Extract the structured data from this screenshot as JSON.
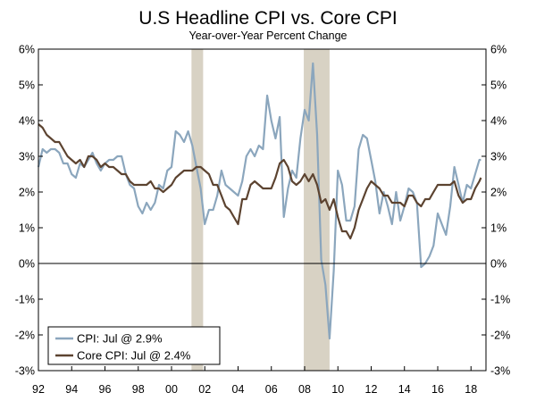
{
  "chart_data": {
    "type": "line",
    "title": "U.S Headline CPI vs. Core CPI",
    "subtitle": "Year-over-Year Percent Change",
    "xlim": [
      1992.0,
      2018.9
    ],
    "ylim": [
      -3,
      6
    ],
    "x_tick_labels": [
      {
        "x": 1992,
        "label": "92"
      },
      {
        "x": 1994,
        "label": "94"
      },
      {
        "x": 1996,
        "label": "96"
      },
      {
        "x": 1998,
        "label": "98"
      },
      {
        "x": 2000,
        "label": "00"
      },
      {
        "x": 2002,
        "label": "02"
      },
      {
        "x": 2004,
        "label": "04"
      },
      {
        "x": 2006,
        "label": "06"
      },
      {
        "x": 2008,
        "label": "08"
      },
      {
        "x": 2010,
        "label": "10"
      },
      {
        "x": 2012,
        "label": "12"
      },
      {
        "x": 2014,
        "label": "14"
      },
      {
        "x": 2016,
        "label": "16"
      },
      {
        "x": 2018,
        "label": "18"
      }
    ],
    "y_ticks": [
      {
        "value": 6,
        "label": "6%"
      },
      {
        "value": 5,
        "label": "5%"
      },
      {
        "value": 4,
        "label": "4%"
      },
      {
        "value": 3,
        "label": "3%"
      },
      {
        "value": 2,
        "label": "2%"
      },
      {
        "value": 1,
        "label": "1%"
      },
      {
        "value": 0,
        "label": "0%"
      },
      {
        "value": -1,
        "label": "-1%"
      },
      {
        "value": -2,
        "label": "-2%"
      },
      {
        "value": -3,
        "label": "-3%"
      }
    ],
    "recessions": [
      {
        "start": 2001.2,
        "end": 2001.9
      },
      {
        "start": 2007.95,
        "end": 2009.5
      }
    ],
    "zero_line": true,
    "grid": false,
    "legend_position": "bottom-left",
    "series": [
      {
        "name": "CPI: Jul @ 2.9%",
        "color": "#8ba6bd",
        "points": [
          [
            1992.0,
            2.7
          ],
          [
            1992.25,
            3.2
          ],
          [
            1992.5,
            3.1
          ],
          [
            1992.75,
            3.2
          ],
          [
            1993.0,
            3.2
          ],
          [
            1993.25,
            3.1
          ],
          [
            1993.5,
            2.8
          ],
          [
            1993.75,
            2.8
          ],
          [
            1994.0,
            2.5
          ],
          [
            1994.25,
            2.4
          ],
          [
            1994.5,
            2.8
          ],
          [
            1994.75,
            2.7
          ],
          [
            1995.0,
            2.9
          ],
          [
            1995.25,
            3.1
          ],
          [
            1995.5,
            2.8
          ],
          [
            1995.75,
            2.6
          ],
          [
            1996.0,
            2.8
          ],
          [
            1996.25,
            2.9
          ],
          [
            1996.5,
            2.9
          ],
          [
            1996.75,
            3.0
          ],
          [
            1997.0,
            3.0
          ],
          [
            1997.25,
            2.5
          ],
          [
            1997.5,
            2.2
          ],
          [
            1997.75,
            2.1
          ],
          [
            1998.0,
            1.6
          ],
          [
            1998.25,
            1.4
          ],
          [
            1998.5,
            1.7
          ],
          [
            1998.75,
            1.5
          ],
          [
            1999.0,
            1.7
          ],
          [
            1999.25,
            2.2
          ],
          [
            1999.5,
            2.1
          ],
          [
            1999.75,
            2.6
          ],
          [
            2000.0,
            2.7
          ],
          [
            2000.25,
            3.7
          ],
          [
            2000.5,
            3.6
          ],
          [
            2000.75,
            3.4
          ],
          [
            2001.0,
            3.7
          ],
          [
            2001.25,
            3.3
          ],
          [
            2001.5,
            2.7
          ],
          [
            2001.75,
            2.1
          ],
          [
            2002.0,
            1.1
          ],
          [
            2002.25,
            1.5
          ],
          [
            2002.5,
            1.5
          ],
          [
            2002.75,
            1.9
          ],
          [
            2003.0,
            2.6
          ],
          [
            2003.25,
            2.2
          ],
          [
            2003.5,
            2.1
          ],
          [
            2003.75,
            2.0
          ],
          [
            2004.0,
            1.9
          ],
          [
            2004.25,
            2.3
          ],
          [
            2004.5,
            3.0
          ],
          [
            2004.75,
            3.2
          ],
          [
            2005.0,
            3.0
          ],
          [
            2005.25,
            3.3
          ],
          [
            2005.5,
            3.2
          ],
          [
            2005.75,
            4.7
          ],
          [
            2006.0,
            4.0
          ],
          [
            2006.25,
            3.5
          ],
          [
            2006.5,
            4.1
          ],
          [
            2006.75,
            1.3
          ],
          [
            2007.0,
            2.1
          ],
          [
            2007.25,
            2.6
          ],
          [
            2007.5,
            2.4
          ],
          [
            2007.75,
            3.5
          ],
          [
            2008.0,
            4.3
          ],
          [
            2008.25,
            4.0
          ],
          [
            2008.5,
            5.6
          ],
          [
            2008.75,
            3.6
          ],
          [
            2009.0,
            0.1
          ],
          [
            2009.25,
            -0.6
          ],
          [
            2009.5,
            -2.1
          ],
          [
            2009.75,
            -0.2
          ],
          [
            2010.0,
            2.6
          ],
          [
            2010.25,
            2.2
          ],
          [
            2010.5,
            1.2
          ],
          [
            2010.75,
            1.2
          ],
          [
            2011.0,
            1.6
          ],
          [
            2011.25,
            3.2
          ],
          [
            2011.5,
            3.6
          ],
          [
            2011.75,
            3.5
          ],
          [
            2012.0,
            2.9
          ],
          [
            2012.25,
            2.3
          ],
          [
            2012.5,
            1.4
          ],
          [
            2012.75,
            2.0
          ],
          [
            2013.0,
            1.6
          ],
          [
            2013.25,
            1.1
          ],
          [
            2013.5,
            2.0
          ],
          [
            2013.75,
            1.2
          ],
          [
            2014.0,
            1.6
          ],
          [
            2014.25,
            2.1
          ],
          [
            2014.5,
            2.0
          ],
          [
            2014.75,
            1.7
          ],
          [
            2015.0,
            -0.1
          ],
          [
            2015.25,
            0.0
          ],
          [
            2015.5,
            0.2
          ],
          [
            2015.75,
            0.5
          ],
          [
            2016.0,
            1.4
          ],
          [
            2016.25,
            1.1
          ],
          [
            2016.5,
            0.8
          ],
          [
            2016.75,
            1.6
          ],
          [
            2017.0,
            2.7
          ],
          [
            2017.25,
            2.2
          ],
          [
            2017.5,
            1.7
          ],
          [
            2017.75,
            2.2
          ],
          [
            2018.0,
            2.1
          ],
          [
            2018.25,
            2.5
          ],
          [
            2018.5,
            2.9
          ],
          [
            2018.6,
            2.9
          ]
        ]
      },
      {
        "name": "Core CPI: Jul @ 2.4%",
        "color": "#5c4330",
        "points": [
          [
            1992.0,
            3.9
          ],
          [
            1992.25,
            3.8
          ],
          [
            1992.5,
            3.6
          ],
          [
            1992.75,
            3.5
          ],
          [
            1993.0,
            3.4
          ],
          [
            1993.25,
            3.4
          ],
          [
            1993.5,
            3.2
          ],
          [
            1993.75,
            3.0
          ],
          [
            1994.0,
            2.9
          ],
          [
            1994.25,
            2.8
          ],
          [
            1994.5,
            2.9
          ],
          [
            1994.75,
            2.7
          ],
          [
            1995.0,
            3.0
          ],
          [
            1995.25,
            3.0
          ],
          [
            1995.5,
            2.9
          ],
          [
            1995.75,
            2.7
          ],
          [
            1996.0,
            2.8
          ],
          [
            1996.25,
            2.7
          ],
          [
            1996.5,
            2.7
          ],
          [
            1996.75,
            2.6
          ],
          [
            1997.0,
            2.5
          ],
          [
            1997.25,
            2.5
          ],
          [
            1997.5,
            2.3
          ],
          [
            1997.75,
            2.2
          ],
          [
            1998.0,
            2.2
          ],
          [
            1998.25,
            2.2
          ],
          [
            1998.5,
            2.2
          ],
          [
            1998.75,
            2.3
          ],
          [
            1999.0,
            2.1
          ],
          [
            1999.25,
            2.1
          ],
          [
            1999.5,
            2.0
          ],
          [
            1999.75,
            2.1
          ],
          [
            2000.0,
            2.2
          ],
          [
            2000.25,
            2.4
          ],
          [
            2000.5,
            2.5
          ],
          [
            2000.75,
            2.6
          ],
          [
            2001.0,
            2.6
          ],
          [
            2001.25,
            2.6
          ],
          [
            2001.5,
            2.7
          ],
          [
            2001.75,
            2.7
          ],
          [
            2002.0,
            2.6
          ],
          [
            2002.25,
            2.5
          ],
          [
            2002.5,
            2.2
          ],
          [
            2002.75,
            2.2
          ],
          [
            2003.0,
            1.9
          ],
          [
            2003.25,
            1.6
          ],
          [
            2003.5,
            1.5
          ],
          [
            2003.75,
            1.3
          ],
          [
            2004.0,
            1.1
          ],
          [
            2004.25,
            1.8
          ],
          [
            2004.5,
            1.8
          ],
          [
            2004.75,
            2.2
          ],
          [
            2005.0,
            2.3
          ],
          [
            2005.25,
            2.2
          ],
          [
            2005.5,
            2.1
          ],
          [
            2005.75,
            2.1
          ],
          [
            2006.0,
            2.1
          ],
          [
            2006.25,
            2.4
          ],
          [
            2006.5,
            2.8
          ],
          [
            2006.75,
            2.9
          ],
          [
            2007.0,
            2.7
          ],
          [
            2007.25,
            2.3
          ],
          [
            2007.5,
            2.2
          ],
          [
            2007.75,
            2.3
          ],
          [
            2008.0,
            2.5
          ],
          [
            2008.25,
            2.3
          ],
          [
            2008.5,
            2.5
          ],
          [
            2008.75,
            2.2
          ],
          [
            2009.0,
            1.7
          ],
          [
            2009.25,
            1.8
          ],
          [
            2009.5,
            1.5
          ],
          [
            2009.75,
            1.8
          ],
          [
            2010.0,
            1.3
          ],
          [
            2010.25,
            0.9
          ],
          [
            2010.5,
            0.9
          ],
          [
            2010.75,
            0.7
          ],
          [
            2011.0,
            1.0
          ],
          [
            2011.25,
            1.5
          ],
          [
            2011.5,
            1.8
          ],
          [
            2011.75,
            2.1
          ],
          [
            2012.0,
            2.3
          ],
          [
            2012.25,
            2.2
          ],
          [
            2012.5,
            2.1
          ],
          [
            2012.75,
            1.9
          ],
          [
            2013.0,
            1.9
          ],
          [
            2013.25,
            1.7
          ],
          [
            2013.5,
            1.7
          ],
          [
            2013.75,
            1.7
          ],
          [
            2014.0,
            1.6
          ],
          [
            2014.25,
            1.9
          ],
          [
            2014.5,
            1.9
          ],
          [
            2014.75,
            1.7
          ],
          [
            2015.0,
            1.6
          ],
          [
            2015.25,
            1.8
          ],
          [
            2015.5,
            1.8
          ],
          [
            2015.75,
            2.0
          ],
          [
            2016.0,
            2.2
          ],
          [
            2016.25,
            2.2
          ],
          [
            2016.5,
            2.2
          ],
          [
            2016.75,
            2.2
          ],
          [
            2017.0,
            2.3
          ],
          [
            2017.25,
            1.9
          ],
          [
            2017.5,
            1.7
          ],
          [
            2017.75,
            1.8
          ],
          [
            2018.0,
            1.8
          ],
          [
            2018.25,
            2.1
          ],
          [
            2018.5,
            2.3
          ],
          [
            2018.6,
            2.4
          ]
        ]
      }
    ]
  }
}
